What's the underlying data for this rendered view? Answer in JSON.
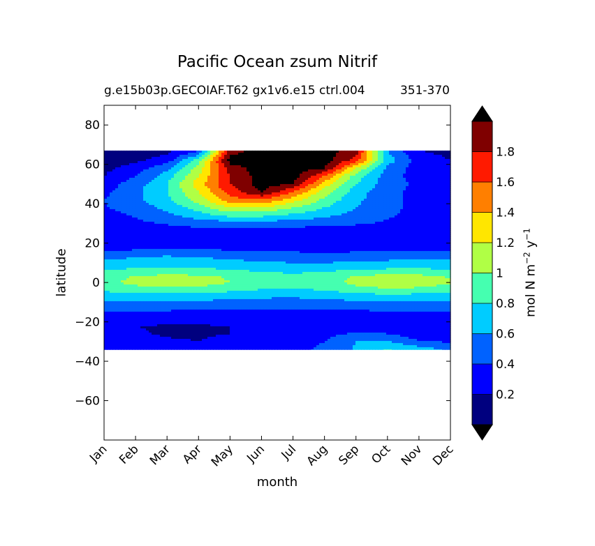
{
  "chart_data": {
    "type": "heatmap",
    "title": "Pacific Ocean zsum Nitrif",
    "subtitle": "g.e15b03p.GECOIAF.T62 gx1v6.e15 ctrl.004",
    "period": "351-370",
    "xlabel": "month",
    "ylabel": "latitude",
    "x_categories": [
      "Jan",
      "Feb",
      "Mar",
      "Apr",
      "May",
      "Jun",
      "Jul",
      "Aug",
      "Sep",
      "Oct",
      "Nov",
      "Dec"
    ],
    "ylim": [
      -80,
      90
    ],
    "y_ticks": [
      80,
      60,
      40,
      20,
      0,
      -20,
      -40,
      -60
    ],
    "y_tick_labels": [
      "80",
      "60",
      "40",
      "20",
      "0",
      "−20",
      "−40",
      "−60"
    ],
    "data_lat_range": [
      -34,
      67
    ],
    "colorbar": {
      "label_main": "mol N m",
      "label_exp1": "−2",
      "label_mid": " y",
      "label_exp2": "−1",
      "levels": [
        0,
        0.2,
        0.4,
        0.6,
        0.8,
        1.0,
        1.2,
        1.4,
        1.6,
        1.8,
        2.0
      ],
      "tick_labels": [
        "0.2",
        "0.4",
        "0.6",
        "0.8",
        "1",
        "1.2",
        "1.4",
        "1.6",
        "1.8"
      ],
      "colors": [
        "#00007f",
        "#0000ff",
        "#0062ff",
        "#00ccff",
        "#45ffb0",
        "#b0ff45",
        "#ffe600",
        "#ff7f00",
        "#ff1a00",
        "#7f0000"
      ],
      "under_color": "#000000",
      "over_color": "#000000",
      "extend": "both"
    },
    "z_rows_note": "rows are latitudes (data_lat_range top to bottom), columns are month centers Jan..Dec",
    "z_lat": [
      67,
      62,
      58,
      54,
      50,
      46,
      42,
      38,
      34,
      30,
      26,
      22,
      18,
      14,
      10,
      6,
      3,
      0,
      -3,
      -6,
      -10,
      -14,
      -18,
      -22,
      -26,
      -30,
      -34
    ],
    "z": [
      [
        0.05,
        0.08,
        0.15,
        0.35,
        1.9,
        2.1,
        2.1,
        2.1,
        1.9,
        0.6,
        0.2,
        0.15
      ],
      [
        0.1,
        0.15,
        0.3,
        0.9,
        2.1,
        2.1,
        2.1,
        2.1,
        1.7,
        0.7,
        0.3,
        0.2
      ],
      [
        0.15,
        0.3,
        0.55,
        1.1,
        1.9,
        2.1,
        2.1,
        2.0,
        1.2,
        0.55,
        0.3,
        0.2
      ],
      [
        0.2,
        0.4,
        0.7,
        1.2,
        1.8,
        2.1,
        2.1,
        1.6,
        0.9,
        0.5,
        0.3,
        0.2
      ],
      [
        0.3,
        0.5,
        0.8,
        1.3,
        1.8,
        2.1,
        2.0,
        1.3,
        0.8,
        0.5,
        0.35,
        0.25
      ],
      [
        0.35,
        0.55,
        0.8,
        1.2,
        1.7,
        2.0,
        1.6,
        1.1,
        0.7,
        0.45,
        0.35,
        0.3
      ],
      [
        0.4,
        0.55,
        0.75,
        1.1,
        1.5,
        1.6,
        1.3,
        0.95,
        0.65,
        0.45,
        0.35,
        0.3
      ],
      [
        0.38,
        0.5,
        0.65,
        0.9,
        1.2,
        1.2,
        1.0,
        0.8,
        0.6,
        0.45,
        0.35,
        0.3
      ],
      [
        0.32,
        0.42,
        0.55,
        0.7,
        0.85,
        0.85,
        0.75,
        0.65,
        0.52,
        0.42,
        0.34,
        0.3
      ],
      [
        0.28,
        0.35,
        0.42,
        0.48,
        0.5,
        0.5,
        0.48,
        0.45,
        0.42,
        0.38,
        0.32,
        0.28
      ],
      [
        0.25,
        0.28,
        0.3,
        0.32,
        0.33,
        0.33,
        0.32,
        0.31,
        0.3,
        0.28,
        0.26,
        0.25
      ],
      [
        0.24,
        0.25,
        0.26,
        0.26,
        0.26,
        0.26,
        0.26,
        0.26,
        0.25,
        0.25,
        0.24,
        0.24
      ],
      [
        0.3,
        0.32,
        0.34,
        0.33,
        0.32,
        0.31,
        0.3,
        0.3,
        0.3,
        0.3,
        0.3,
        0.3
      ],
      [
        0.5,
        0.55,
        0.58,
        0.56,
        0.52,
        0.48,
        0.46,
        0.45,
        0.46,
        0.48,
        0.5,
        0.5
      ],
      [
        0.65,
        0.7,
        0.72,
        0.7,
        0.66,
        0.62,
        0.6,
        0.6,
        0.62,
        0.65,
        0.68,
        0.68
      ],
      [
        0.8,
        0.85,
        0.88,
        0.86,
        0.82,
        0.78,
        0.76,
        0.78,
        0.82,
        0.85,
        0.85,
        0.82
      ],
      [
        0.92,
        1.02,
        1.06,
        1.04,
        0.98,
        0.88,
        0.84,
        0.9,
        1.02,
        1.08,
        1.06,
        0.98
      ],
      [
        0.95,
        1.05,
        1.1,
        1.08,
        1.0,
        0.88,
        0.84,
        0.92,
        1.05,
        1.12,
        1.1,
        1.02
      ],
      [
        0.88,
        0.95,
        0.98,
        0.96,
        0.9,
        0.82,
        0.8,
        0.85,
        0.95,
        1.0,
        0.98,
        0.92
      ],
      [
        0.72,
        0.76,
        0.78,
        0.76,
        0.72,
        0.68,
        0.66,
        0.7,
        0.76,
        0.8,
        0.78,
        0.75
      ],
      [
        0.56,
        0.58,
        0.58,
        0.56,
        0.54,
        0.52,
        0.52,
        0.54,
        0.56,
        0.58,
        0.58,
        0.57
      ],
      [
        0.42,
        0.42,
        0.41,
        0.4,
        0.39,
        0.38,
        0.38,
        0.39,
        0.4,
        0.41,
        0.42,
        0.42
      ],
      [
        0.32,
        0.3,
        0.28,
        0.28,
        0.28,
        0.29,
        0.3,
        0.32,
        0.34,
        0.36,
        0.36,
        0.34
      ],
      [
        0.22,
        0.2,
        0.19,
        0.19,
        0.2,
        0.22,
        0.24,
        0.27,
        0.3,
        0.3,
        0.24,
        0.2
      ],
      [
        0.24,
        0.21,
        0.19,
        0.19,
        0.2,
        0.23,
        0.28,
        0.34,
        0.42,
        0.4,
        0.26,
        0.22
      ],
      [
        0.28,
        0.24,
        0.21,
        0.2,
        0.22,
        0.26,
        0.32,
        0.4,
        0.6,
        0.62,
        0.42,
        0.38
      ],
      [
        0.3,
        0.26,
        0.22,
        0.22,
        0.24,
        0.28,
        0.34,
        0.44,
        0.62,
        0.82,
        0.7,
        0.56
      ]
    ]
  }
}
